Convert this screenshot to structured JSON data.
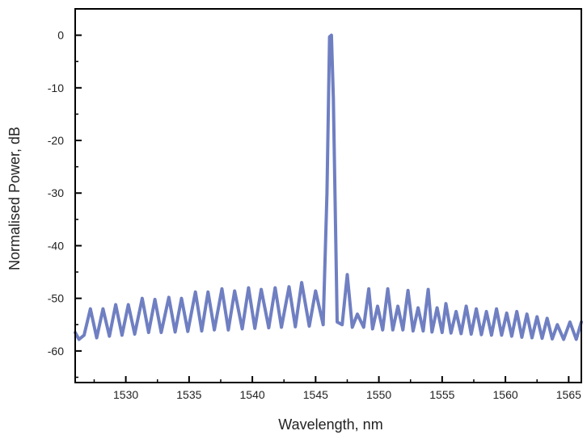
{
  "chart_data": {
    "type": "line",
    "title": "",
    "xlabel": "Wavelength, nm",
    "ylabel": "Normalised Power, dB",
    "xlim": [
      1526,
      1566
    ],
    "ylim": [
      -66,
      5
    ],
    "xticks": [
      1530,
      1535,
      1540,
      1545,
      1550,
      1555,
      1560,
      1565
    ],
    "yticks": [
      0,
      -10,
      -20,
      -30,
      -40,
      -50,
      -60
    ],
    "grid": false,
    "legend": "none",
    "series": [
      {
        "color": "#6f7fc2",
        "x": [
          1526.0,
          1526.3,
          1526.7,
          1527.2,
          1527.7,
          1528.2,
          1528.7,
          1529.2,
          1529.7,
          1530.2,
          1530.7,
          1531.3,
          1531.8,
          1532.3,
          1532.8,
          1533.4,
          1533.9,
          1534.4,
          1534.9,
          1535.5,
          1536.0,
          1536.5,
          1537.0,
          1537.6,
          1538.1,
          1538.6,
          1539.2,
          1539.7,
          1540.2,
          1540.7,
          1541.3,
          1541.8,
          1542.3,
          1542.9,
          1543.4,
          1543.9,
          1544.5,
          1545.0,
          1545.6,
          1545.9,
          1546.1,
          1546.25,
          1546.4,
          1546.7,
          1547.1,
          1547.5,
          1547.9,
          1548.3,
          1548.8,
          1549.2,
          1549.5,
          1549.9,
          1550.3,
          1550.7,
          1551.1,
          1551.5,
          1551.9,
          1552.3,
          1552.7,
          1553.1,
          1553.5,
          1553.9,
          1554.2,
          1554.6,
          1555.0,
          1555.3,
          1555.7,
          1556.1,
          1556.5,
          1556.9,
          1557.3,
          1557.7,
          1558.1,
          1558.5,
          1558.9,
          1559.3,
          1559.7,
          1560.1,
          1560.5,
          1560.9,
          1561.3,
          1561.7,
          1562.1,
          1562.5,
          1562.9,
          1563.3,
          1563.7,
          1564.1,
          1564.6,
          1565.1,
          1565.6,
          1566.0
        ],
        "y": [
          -56.5,
          -57.8,
          -57.0,
          -52.0,
          -57.5,
          -52.0,
          -57.2,
          -51.2,
          -57.0,
          -51.2,
          -56.8,
          -50.0,
          -56.5,
          -50.2,
          -56.5,
          -49.8,
          -56.4,
          -50.0,
          -56.3,
          -48.8,
          -56.2,
          -48.8,
          -56.0,
          -48.2,
          -56.0,
          -48.6,
          -55.8,
          -48.0,
          -55.7,
          -48.3,
          -55.6,
          -48.0,
          -55.5,
          -47.8,
          -55.4,
          -47.0,
          -55.3,
          -48.6,
          -55.0,
          -30.0,
          -0.3,
          0.0,
          -12.0,
          -54.5,
          -55.0,
          -45.5,
          -55.5,
          -53.0,
          -55.5,
          -48.2,
          -55.8,
          -51.5,
          -56.0,
          -48.2,
          -56.0,
          -51.5,
          -56.0,
          -48.5,
          -56.2,
          -51.8,
          -56.2,
          -48.3,
          -56.4,
          -51.8,
          -56.5,
          -51.0,
          -56.6,
          -52.5,
          -56.7,
          -51.5,
          -56.8,
          -52.0,
          -56.9,
          -52.5,
          -57.0,
          -52.0,
          -57.0,
          -52.8,
          -57.2,
          -52.5,
          -57.4,
          -53.0,
          -57.5,
          -53.5,
          -57.6,
          -53.8,
          -57.7,
          -55.0,
          -57.8,
          -54.5,
          -57.8,
          -54.5
        ]
      }
    ]
  }
}
